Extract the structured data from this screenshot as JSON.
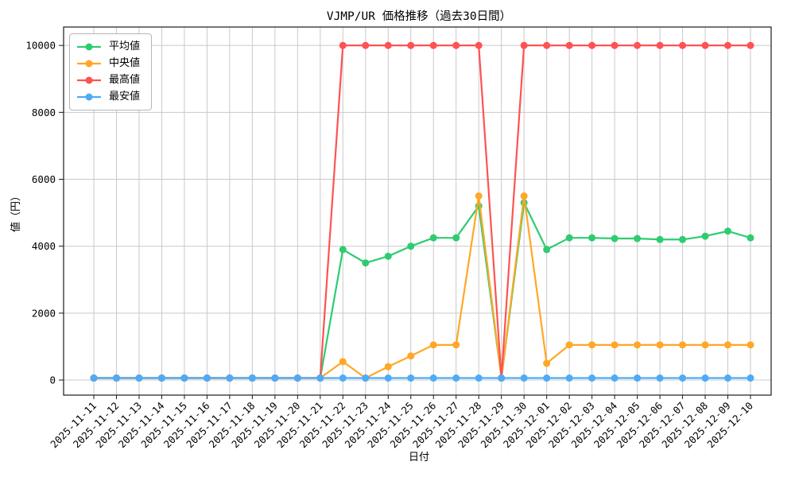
{
  "chart_data": {
    "type": "line",
    "title": "VJMP/UR 価格推移（過去30日間）",
    "xlabel": "日付",
    "ylabel": "値（円）",
    "legend_position": "upper-left",
    "grid": true,
    "background_color": "#ffffff",
    "grid_color": "#c9c9c9",
    "spine_color": "#1a1a1a",
    "text_color": "#000000",
    "yticks": [
      0,
      2000,
      4000,
      6000,
      8000,
      10000
    ],
    "ylim": [
      -450,
      10550
    ],
    "x": [
      "2025-11-11",
      "2025-11-12",
      "2025-11-13",
      "2025-11-14",
      "2025-11-15",
      "2025-11-16",
      "2025-11-17",
      "2025-11-18",
      "2025-11-19",
      "2025-11-20",
      "2025-11-21",
      "2025-11-22",
      "2025-11-23",
      "2025-11-24",
      "2025-11-25",
      "2025-11-26",
      "2025-11-27",
      "2025-11-28",
      "2025-11-29",
      "2025-11-30",
      "2025-12-01",
      "2025-12-02",
      "2025-12-03",
      "2025-12-04",
      "2025-12-05",
      "2025-12-06",
      "2025-12-07",
      "2025-12-08",
      "2025-12-09",
      "2025-12-10"
    ],
    "series": [
      {
        "name": "平均値",
        "color": "#2ecc71",
        "values": [
          60,
          60,
          60,
          60,
          60,
          60,
          60,
          60,
          60,
          60,
          60,
          3900,
          3500,
          3700,
          4000,
          4250,
          4250,
          5200,
          60,
          5300,
          3900,
          4250,
          4250,
          4230,
          4230,
          4200,
          4200,
          4300,
          4450,
          4250
        ]
      },
      {
        "name": "中央値",
        "color": "#ffa726",
        "values": [
          60,
          60,
          60,
          60,
          60,
          60,
          60,
          60,
          60,
          60,
          60,
          550,
          60,
          400,
          720,
          1050,
          1050,
          5500,
          60,
          5500,
          500,
          1050,
          1050,
          1050,
          1050,
          1050,
          1050,
          1050,
          1050,
          1050
        ]
      },
      {
        "name": "最高値",
        "color": "#ff5252",
        "values": [
          60,
          60,
          60,
          60,
          60,
          60,
          60,
          60,
          60,
          60,
          60,
          10000,
          10000,
          10000,
          10000,
          10000,
          10000,
          10000,
          60,
          10000,
          10000,
          10000,
          10000,
          10000,
          10000,
          10000,
          10000,
          10000,
          10000,
          10000
        ]
      },
      {
        "name": "最安値",
        "color": "#4dabf7",
        "values": [
          60,
          60,
          60,
          60,
          60,
          60,
          60,
          60,
          60,
          60,
          60,
          60,
          60,
          60,
          60,
          60,
          60,
          60,
          60,
          60,
          60,
          60,
          60,
          60,
          60,
          60,
          60,
          60,
          60,
          60
        ]
      }
    ]
  }
}
